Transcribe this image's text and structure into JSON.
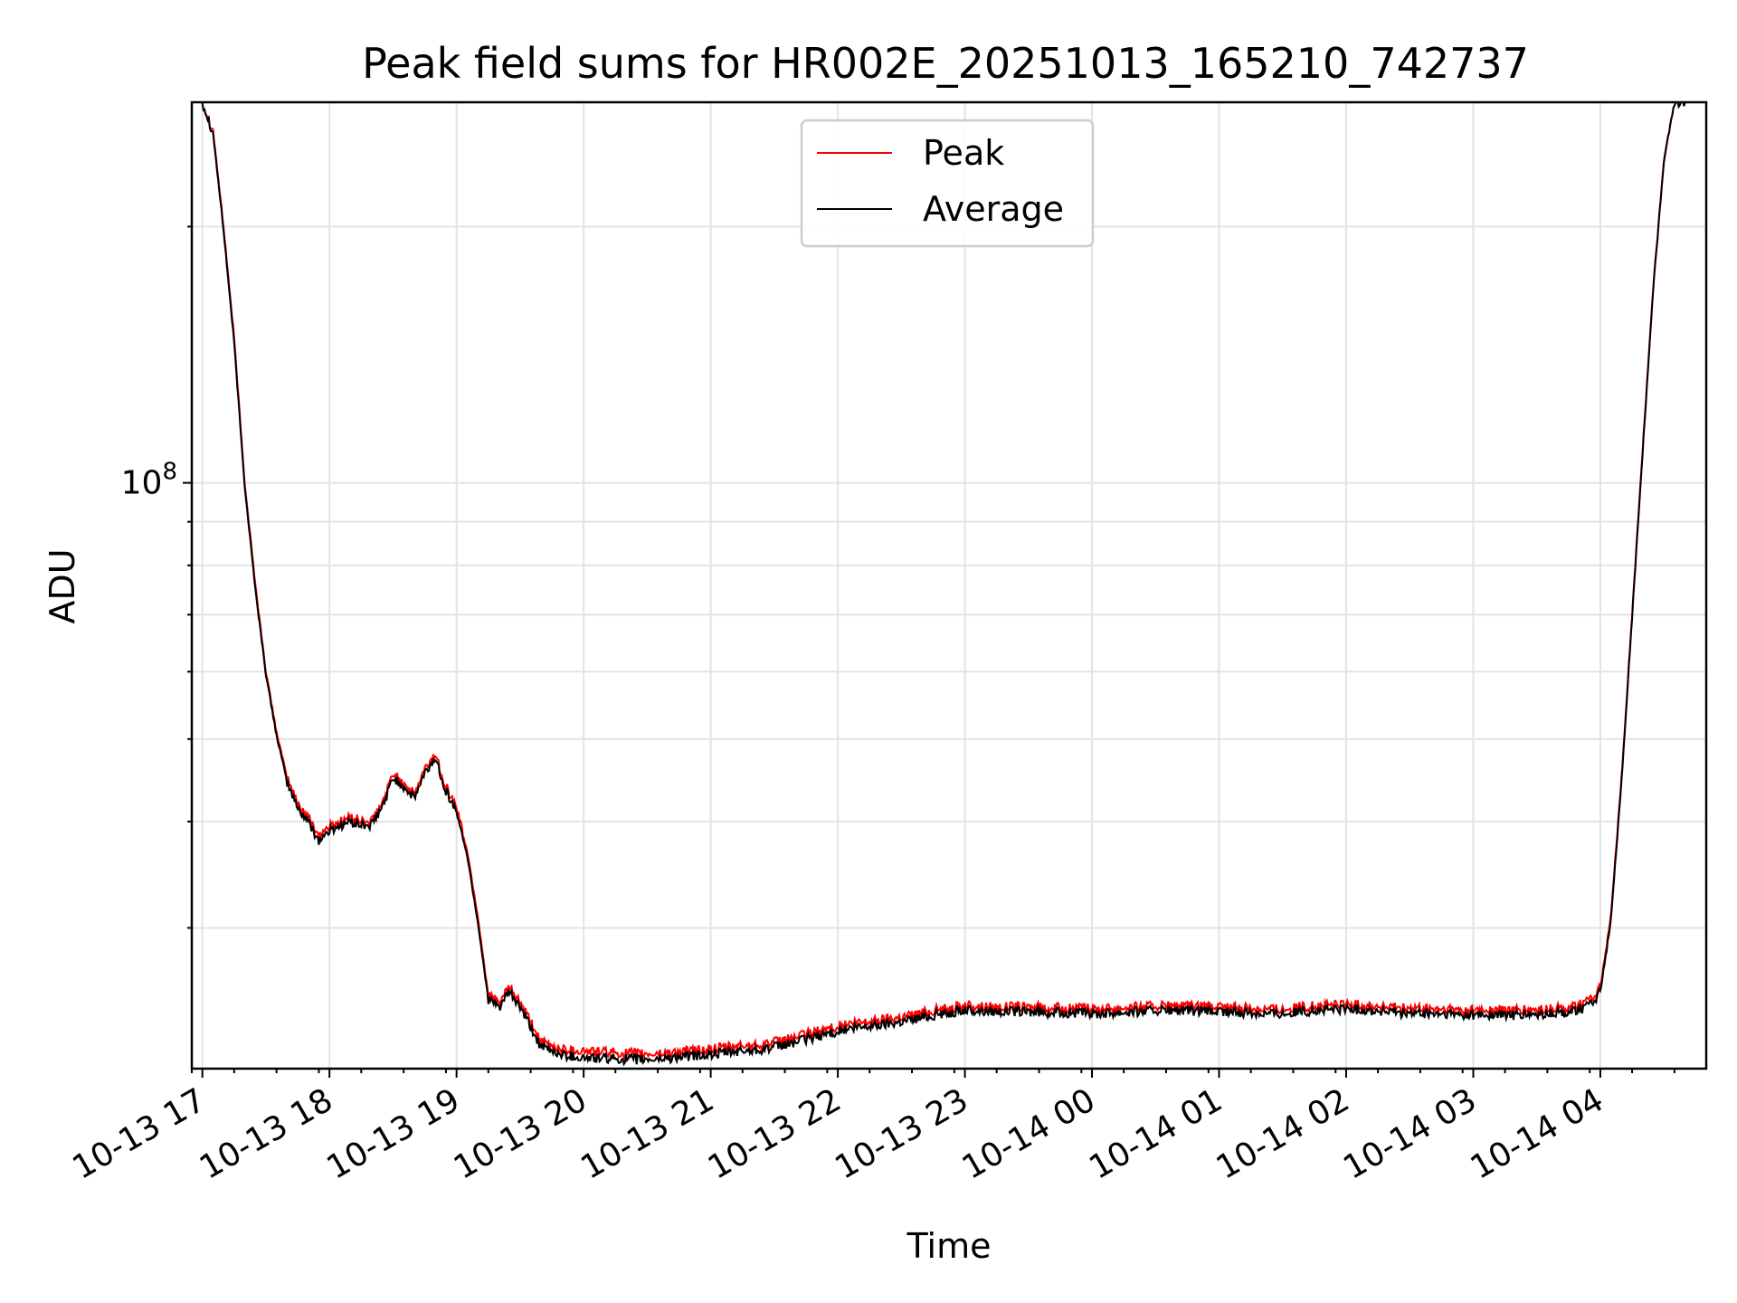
{
  "chart_data": {
    "type": "line",
    "title": "Peak field sums for HR002E_20251013_165210_742737",
    "xlabel": "Time",
    "ylabel": "ADU",
    "y_scale": "log",
    "ylim": [
      20500000,
      280000000
    ],
    "xlim": [
      "2025-10-13 16:55",
      "2025-10-14 04:50"
    ],
    "x_tick_labels": [
      "10-13 17",
      "10-13 18",
      "10-13 19",
      "10-13 20",
      "10-13 21",
      "10-13 22",
      "10-13 23",
      "10-14 00",
      "10-14 01",
      "10-14 02",
      "10-14 03",
      "10-14 04"
    ],
    "y_tick_labels": [
      {
        "value": 100000000,
        "base": "10",
        "exp": "8"
      }
    ],
    "grid": true,
    "legend": "upper center",
    "x": [
      "2025-10-13 17:00",
      "2025-10-13 17:05",
      "2025-10-13 17:10",
      "2025-10-13 17:15",
      "2025-10-13 17:20",
      "2025-10-13 17:25",
      "2025-10-13 17:30",
      "2025-10-13 17:35",
      "2025-10-13 17:40",
      "2025-10-13 17:45",
      "2025-10-13 17:50",
      "2025-10-13 17:55",
      "2025-10-13 18:00",
      "2025-10-13 18:05",
      "2025-10-13 18:10",
      "2025-10-13 18:15",
      "2025-10-13 18:20",
      "2025-10-13 18:25",
      "2025-10-13 18:30",
      "2025-10-13 18:35",
      "2025-10-13 18:40",
      "2025-10-13 18:45",
      "2025-10-13 18:50",
      "2025-10-13 18:55",
      "2025-10-13 19:00",
      "2025-10-13 19:05",
      "2025-10-13 19:10",
      "2025-10-13 19:15",
      "2025-10-13 19:20",
      "2025-10-13 19:25",
      "2025-10-13 19:30",
      "2025-10-13 19:40",
      "2025-10-13 19:50",
      "2025-10-13 20:00",
      "2025-10-13 20:30",
      "2025-10-13 21:00",
      "2025-10-13 21:30",
      "2025-10-13 22:00",
      "2025-10-13 22:30",
      "2025-10-13 22:45",
      "2025-10-13 23:00",
      "2025-10-13 23:30",
      "2025-10-14 00:00",
      "2025-10-14 00:30",
      "2025-10-14 01:00",
      "2025-10-14 01:30",
      "2025-10-14 01:45",
      "2025-10-14 02:00",
      "2025-10-14 02:30",
      "2025-10-14 03:00",
      "2025-10-14 03:30",
      "2025-10-14 03:45",
      "2025-10-14 03:55",
      "2025-10-14 04:00",
      "2025-10-14 04:05",
      "2025-10-14 04:10",
      "2025-10-14 04:15",
      "2025-10-14 04:20",
      "2025-10-14 04:25",
      "2025-10-14 04:30",
      "2025-10-14 04:35",
      "2025-10-14 04:40"
    ],
    "series": [
      {
        "name": "Peak",
        "color": "#ff0000",
        "values": [
          280000000,
          260000000,
          200000000,
          148000000,
          100000000,
          76000000,
          60000000,
          51000000,
          45000000,
          42000000,
          40500000,
          38500000,
          39500000,
          40000000,
          40500000,
          40000000,
          40000000,
          42000000,
          45500000,
          44500000,
          43000000,
          46000000,
          48000000,
          44000000,
          41500000,
          37000000,
          31000000,
          25000000,
          24500000,
          25500000,
          24500000,
          22000000,
          21600000,
          21500000,
          21300000,
          21600000,
          22000000,
          23000000,
          23600000,
          24000000,
          24300000,
          24200000,
          24100000,
          24300000,
          24200000,
          24100000,
          24300000,
          24400000,
          24100000,
          24000000,
          24000000,
          24200000,
          24600000,
          25500000,
          31000000,
          45000000,
          70000000,
          110000000,
          170000000,
          240000000,
          280000000,
          280000000
        ]
      },
      {
        "name": "Average",
        "color": "#000000",
        "values": [
          280000000,
          258000000,
          198000000,
          146000000,
          99000000,
          75000000,
          59500000,
          50500000,
          44500000,
          41500000,
          40000000,
          38000000,
          39000000,
          39600000,
          40000000,
          39600000,
          39600000,
          41600000,
          45000000,
          44000000,
          42600000,
          45500000,
          47500000,
          43500000,
          41000000,
          36500000,
          30500000,
          24700000,
          24200000,
          25200000,
          24200000,
          21700000,
          21300000,
          21100000,
          21000000,
          21300000,
          21700000,
          22700000,
          23300000,
          23700000,
          24000000,
          23900000,
          23800000,
          24000000,
          23900000,
          23800000,
          24000000,
          24100000,
          23800000,
          23700000,
          23700000,
          23900000,
          24300000,
          25200000,
          30600000,
          44500000,
          69500000,
          109000000,
          169000000,
          239000000,
          280000000,
          280000000
        ]
      }
    ]
  }
}
